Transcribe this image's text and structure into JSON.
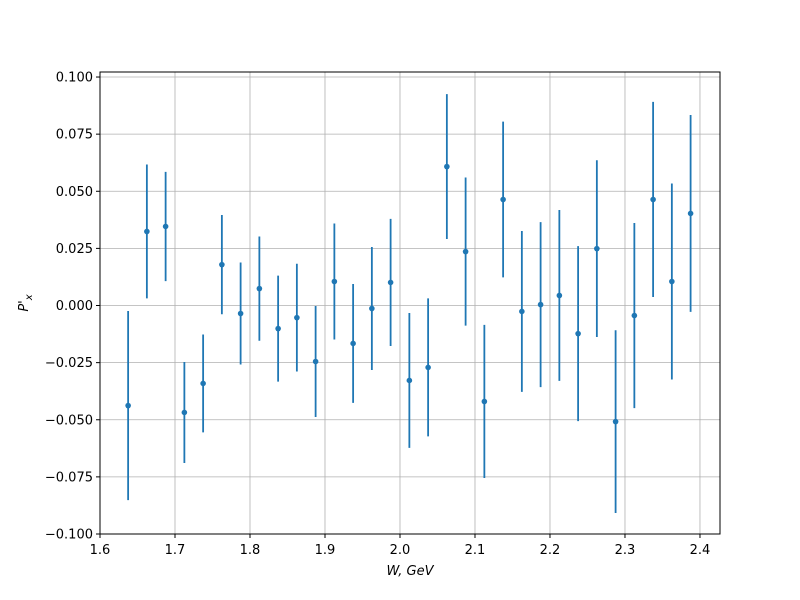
{
  "chart_data": {
    "type": "errorbar",
    "xlabel": "W, GeV",
    "ylabel": "P'",
    "ylabel_sub": "x",
    "x": [
      1.6375,
      1.6625,
      1.6875,
      1.7125,
      1.7375,
      1.7625,
      1.7875,
      1.8125,
      1.8375,
      1.8625,
      1.8875,
      1.9125,
      1.9375,
      1.9625,
      1.9875,
      2.0125,
      2.0375,
      2.0625,
      2.0875,
      2.1125,
      2.1375,
      2.1625,
      2.1875,
      2.2125,
      2.2375,
      2.2625,
      2.2875,
      2.3125,
      2.3375,
      2.3625,
      2.3875
    ],
    "values": [
      -0.0438,
      0.0324,
      0.0346,
      -0.0468,
      -0.0341,
      0.0179,
      -0.0035,
      0.0074,
      -0.0101,
      -0.0053,
      -0.0245,
      0.0105,
      -0.0166,
      -0.0013,
      0.0101,
      -0.0328,
      -0.0271,
      0.0608,
      0.0236,
      -0.042,
      0.0464,
      -0.0026,
      0.0004,
      0.0044,
      -0.0123,
      0.0249,
      -0.0508,
      -0.0044,
      0.0464,
      0.0105,
      0.0403
    ],
    "errors": [
      0.0414,
      0.0293,
      0.0239,
      0.0221,
      0.0214,
      0.0217,
      0.0223,
      0.0228,
      0.0232,
      0.0236,
      0.0243,
      0.0254,
      0.026,
      0.0269,
      0.0278,
      0.0295,
      0.0302,
      0.0317,
      0.0324,
      0.0335,
      0.0341,
      0.0352,
      0.0361,
      0.0374,
      0.0383,
      0.0387,
      0.04,
      0.0405,
      0.0427,
      0.0429,
      0.0431
    ],
    "color": "#1f77b4",
    "xlim": [
      1.6,
      2.4267
    ],
    "ylim": [
      -0.1,
      0.1022
    ],
    "xticks": [
      1.6,
      1.7,
      1.8,
      1.9,
      {
        "value": 2,
        "label": "2.0"
      },
      2.1,
      2.2,
      2.3,
      2.4
    ],
    "yticks": [
      {
        "value": -0.1,
        "label": "−0.100"
      },
      {
        "value": -0.075,
        "label": "−0.075"
      },
      {
        "value": -0.05,
        "label": "−0.050"
      },
      {
        "value": -0.025,
        "label": "−0.025"
      },
      {
        "value": 0,
        "label": "0.000"
      },
      {
        "value": 0.025,
        "label": "0.025"
      },
      {
        "value": 0.05,
        "label": "0.050"
      },
      {
        "value": 0.075,
        "label": "0.075"
      },
      {
        "value": 0.1,
        "label": "0.100"
      }
    ],
    "grid": true
  }
}
